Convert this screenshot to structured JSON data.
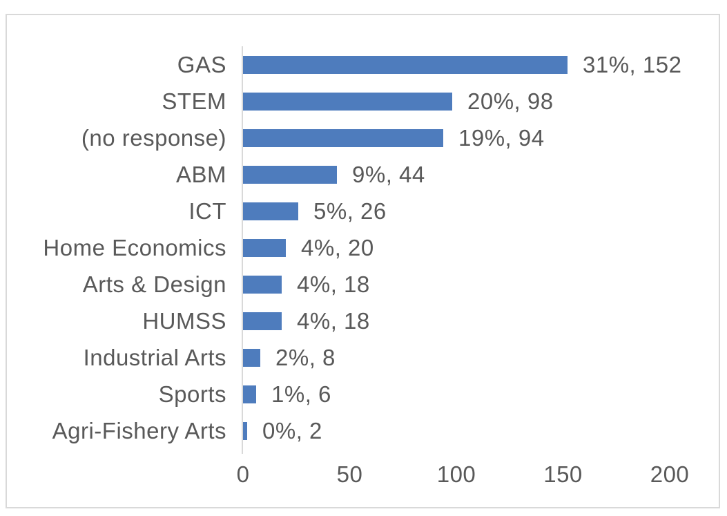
{
  "chart_data": {
    "type": "bar",
    "orientation": "horizontal",
    "title": "",
    "xlabel": "",
    "ylabel": "",
    "categories": [
      "GAS",
      "STEM",
      "(no response)",
      "ABM",
      "ICT",
      "Home Economics",
      "Arts & Design",
      "HUMSS",
      "Industrial Arts",
      "Sports",
      "Agri-Fishery Arts"
    ],
    "values": [
      152,
      98,
      94,
      44,
      26,
      20,
      18,
      18,
      8,
      6,
      2
    ],
    "data_labels": [
      "31%, 152",
      "20%, 98",
      "19%, 94",
      "9%, 44",
      "5%, 26",
      "4%, 20",
      "4%, 18",
      "4%, 18",
      "2%, 8",
      "1%, 6",
      "0%, 2"
    ],
    "x_ticks": [
      "0",
      "50",
      "100",
      "150",
      "200"
    ],
    "x_tick_values": [
      0,
      50,
      100,
      150,
      200
    ],
    "xlim": [
      0,
      200
    ],
    "grid": false,
    "legend": false,
    "colors": {
      "bar": "#4E7CBD",
      "text": "#595959",
      "axis": "#D9D9D9",
      "frame_border": "#D9D9D9",
      "background": "#FFFFFF"
    }
  }
}
